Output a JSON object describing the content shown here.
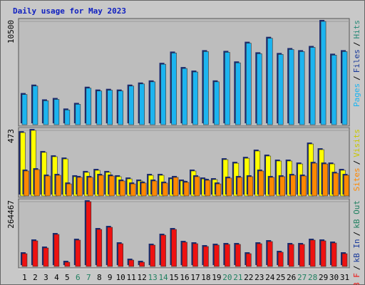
{
  "chart_data": [
    {
      "type": "bar",
      "title": "Daily usage for May 2023",
      "ylim": [
        0,
        10500
      ],
      "yticks": [
        10500
      ],
      "grid": true,
      "legend_separator": "/",
      "series": [
        {
          "name": "Pages",
          "color": "#1cb4f0",
          "values": [
            3071,
            3929,
            2429,
            2571,
            1500,
            2071,
            3714,
            3429,
            3500,
            3429,
            3929,
            4143,
            4357,
            6143,
            7286,
            5714,
            5357,
            7429,
            4357,
            7357,
            6286,
            8286,
            7214,
            8786,
            7143,
            7643,
            7429,
            7857,
            10500,
            7071,
            7429
          ]
        }
      ],
      "extra_legend": [
        {
          "name": "Files",
          "color": "#1a3a9a"
        },
        {
          "name": "Hits",
          "color": "#2a8a78"
        }
      ]
    },
    {
      "type": "bar",
      "ylim": [
        0,
        473
      ],
      "yticks": [
        473
      ],
      "grid": true,
      "legend_separator": "/",
      "legend_reverse": true,
      "series": [
        {
          "name": "Visits",
          "color": "#ffff00",
          "values": [
            457,
            473,
            314,
            283,
            267,
            139,
            170,
            185,
            170,
            139,
            123,
            108,
            149,
            149,
            123,
            108,
            180,
            123,
            118,
            262,
            236,
            272,
            324,
            288,
            252,
            252,
            231,
            375,
            334,
            231,
            185
          ]
        },
        {
          "name": "Sites",
          "color": "#ff8800",
          "values": [
            180,
            190,
            144,
            149,
            87,
            134,
            134,
            149,
            144,
            108,
            87,
            93,
            108,
            93,
            134,
            98,
            139,
            113,
            87,
            129,
            134,
            139,
            180,
            134,
            139,
            149,
            144,
            236,
            231,
            164,
            149
          ]
        }
      ]
    },
    {
      "type": "bar",
      "ylim": [
        0,
        264467
      ],
      "yticks": [
        264467
      ],
      "grid": true,
      "legend_separator": "/",
      "categories": [
        "1",
        "2",
        "3",
        "4",
        "5",
        "6",
        "7",
        "8",
        "9",
        "10",
        "11",
        "12",
        "13",
        "14",
        "15",
        "16",
        "17",
        "18",
        "19",
        "20",
        "21",
        "22",
        "23",
        "24",
        "25",
        "26",
        "27",
        "28",
        "29",
        "30",
        "31"
      ],
      "weekends": [
        "6",
        "7",
        "13",
        "14",
        "20",
        "21",
        "27",
        "28"
      ],
      "weekend_color": "#208060",
      "label_color": "#000000",
      "series": [
        {
          "name": "kB F",
          "color": "#ee1111",
          "values": [
            52308,
            104616,
            75556,
            130770,
            17436,
            107522,
            264467,
            151112,
            159830,
            92992,
            26154,
            17436,
            87180,
            127864,
            151112,
            98804,
            92992,
            81368,
            87180,
            90086,
            90086,
            52308,
            92992,
            101710,
            58120,
            90086,
            90086,
            107522,
            104616,
            95898,
            52308
          ]
        }
      ],
      "extra_legend": [
        {
          "name": "kB In",
          "color": "#1a3a9a"
        },
        {
          "name": "kB Out",
          "color": "#208060"
        }
      ]
    }
  ]
}
